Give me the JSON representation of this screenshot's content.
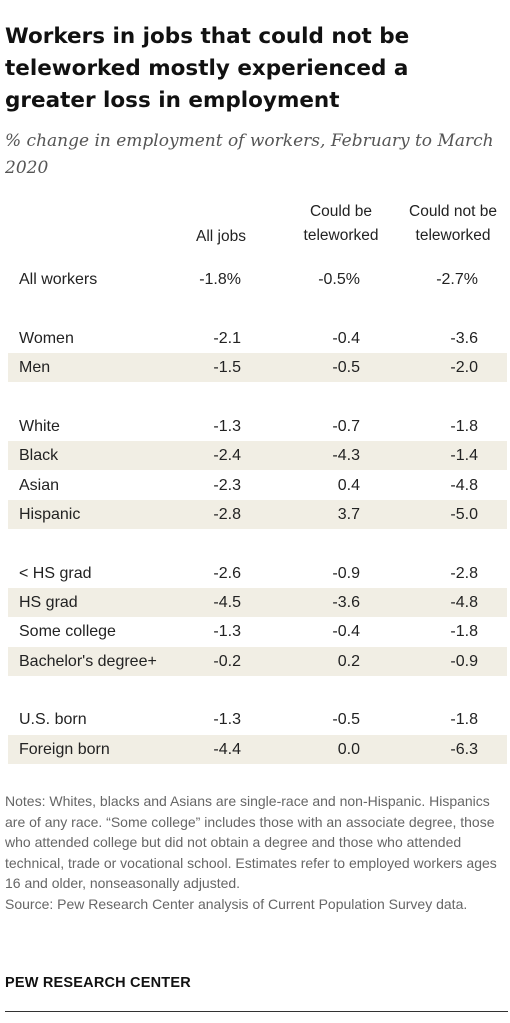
{
  "title": "Workers in jobs that could not be teleworked mostly experienced a greater loss in employment",
  "subtitle": "% change in employment of workers, February to March 2020",
  "chart_data": {
    "type": "table",
    "columns": [
      "All jobs",
      "Could be teleworked",
      "Could not be teleworked"
    ],
    "column_lines": [
      [
        "All jobs"
      ],
      [
        "Could be",
        "teleworked"
      ],
      [
        "Could not be",
        "teleworked"
      ]
    ],
    "rows": [
      {
        "label": "All workers",
        "values": [
          "-1.8%",
          "-0.5%",
          "-2.7%"
        ]
      },
      {
        "label": "Women",
        "values": [
          "-2.1",
          "-0.4",
          "-3.6"
        ]
      },
      {
        "label": "Men",
        "values": [
          "-1.5",
          "-0.5",
          "-2.0"
        ]
      },
      {
        "label": "White",
        "values": [
          "-1.3",
          "-0.7",
          "-1.8"
        ]
      },
      {
        "label": "Black",
        "values": [
          "-2.4",
          "-4.3",
          "-1.4"
        ]
      },
      {
        "label": "Asian",
        "values": [
          "-2.3",
          "0.4",
          "-4.8"
        ]
      },
      {
        "label": "Hispanic",
        "values": [
          "-2.8",
          "3.7",
          "-5.0"
        ]
      },
      {
        "label": "< HS grad",
        "values": [
          "-2.6",
          "-0.9",
          "-2.8"
        ]
      },
      {
        "label": "HS grad",
        "values": [
          "-4.5",
          "-3.6",
          "-4.8"
        ]
      },
      {
        "label": "Some college",
        "values": [
          "-1.3",
          "-0.4",
          "-1.8"
        ]
      },
      {
        "label": "Bachelor's degree+",
        "values": [
          "-0.2",
          "0.2",
          "-0.9"
        ]
      },
      {
        "label": "U.S. born",
        "values": [
          "-1.3",
          "-0.5",
          "-1.8"
        ]
      },
      {
        "label": "Foreign born",
        "values": [
          "-4.4",
          "0.0",
          "-6.3"
        ]
      }
    ]
  },
  "notes": "Notes: Whites, blacks and Asians are single-race and non-Hispanic. Hispanics are of any race. “Some college” includes those with an associate degree, those who attended college but did not obtain a degree and those who attended technical, trade or vocational school. Estimates refer to employed workers ages 16 and older, nonseasonally adjusted.",
  "source": "Source: Pew Research Center analysis of Current Population Survey data.",
  "footer": "PEW RESEARCH CENTER",
  "colors": {
    "row_shading": "#f1eee4",
    "notes_text": "#666666",
    "subtitle_text": "#555555"
  }
}
